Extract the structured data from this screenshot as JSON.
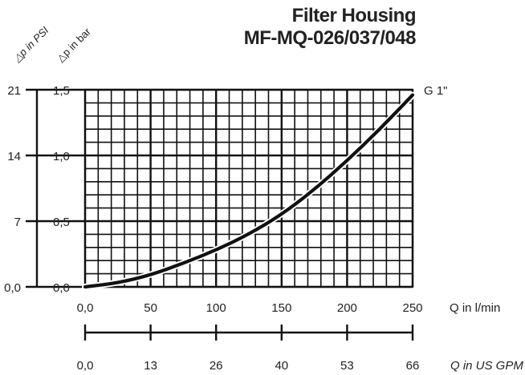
{
  "title_line1": "Filter Housing",
  "title_line2": "MF-MQ-026/037/048",
  "chart_data": {
    "type": "line",
    "series": [
      {
        "name": "G 1\"",
        "x": [
          0,
          25,
          50,
          75,
          100,
          125,
          150,
          175,
          200,
          225,
          250
        ],
        "y": [
          0.0,
          0.03,
          0.09,
          0.18,
          0.28,
          0.4,
          0.55,
          0.74,
          0.96,
          1.2,
          1.46
        ]
      }
    ],
    "xlabel": "Q in l/min",
    "x2label": "Q in US GPM",
    "ylabel": "△p in bar",
    "y2label": "△p in PSI",
    "xlim": [
      0,
      250
    ],
    "ylim": [
      0,
      1.5
    ],
    "x_ticks": [
      "0,0",
      "50",
      "100",
      "150",
      "200",
      "250"
    ],
    "x2_ticks": [
      "0,0",
      "13",
      "26",
      "40",
      "53",
      "66"
    ],
    "y_ticks": [
      "0,0",
      "0,5",
      "1,0",
      "1,5"
    ],
    "y2_ticks": [
      "0,0",
      "7",
      "14",
      "21"
    ],
    "grid": true
  }
}
